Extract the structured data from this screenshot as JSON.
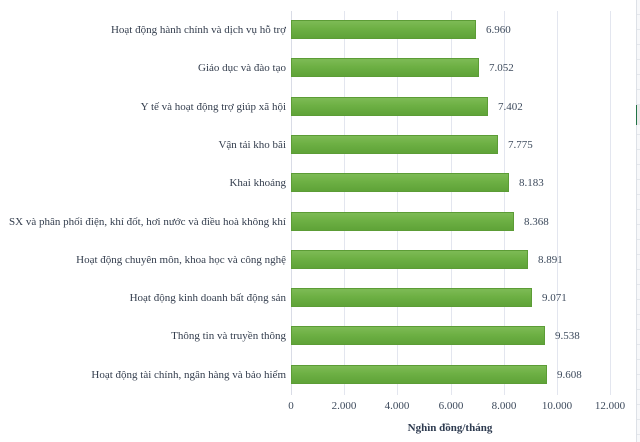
{
  "chart_data": {
    "type": "bar",
    "orientation": "horizontal",
    "title": "",
    "xlabel": "Nghìn đồng/tháng",
    "ylabel": "",
    "xlim": [
      0,
      12000
    ],
    "x_ticks": [
      "0",
      "2.000",
      "4.000",
      "6.000",
      "8.000",
      "10.000",
      "12.000"
    ],
    "grid": "vertical",
    "legend": "none",
    "categories": [
      "Hoạt động hành chính và dịch vụ hỗ trợ",
      "Giáo dục và đào tạo",
      "Y tế và hoạt động trợ giúp xã hội",
      "Vận tải kho bãi",
      "Khai khoáng",
      "SX và phân phối điện, khí đốt, hơi nước và điều hoà không khí",
      "Hoạt động chuyên môn, khoa học và công nghệ",
      "Hoạt động kinh doanh bất động sản",
      "Thông tin và truyền thông",
      "Hoạt động tài chính, ngân hàng và bảo hiểm"
    ],
    "values": [
      6960,
      7052,
      7402,
      7775,
      8183,
      8368,
      8891,
      9071,
      9538,
      9608
    ],
    "value_labels": [
      "6.960",
      "7.052",
      "7.402",
      "7.775",
      "8.183",
      "8.368",
      "8.891",
      "9.071",
      "9.538",
      "9.608"
    ],
    "bar_color": "#6db044"
  },
  "labels": {
    "cat0": "Hoạt động hành chính và dịch vụ hỗ trợ",
    "cat1": "Giáo dục và đào tạo",
    "cat2": "Y tế và hoạt động trợ giúp xã hội",
    "cat3": "Vận tải kho bãi",
    "cat4": "Khai khoáng",
    "cat5": "SX và phân phối điện, khí đốt, hơi nước và điều hoà không khí",
    "cat6": "Hoạt động chuyên môn, khoa học và công nghệ",
    "cat7": "Hoạt động kinh doanh bất động sản",
    "cat8": "Thông tin và truyền thông",
    "cat9": "Hoạt động tài chính, ngân hàng và bảo hiểm"
  }
}
